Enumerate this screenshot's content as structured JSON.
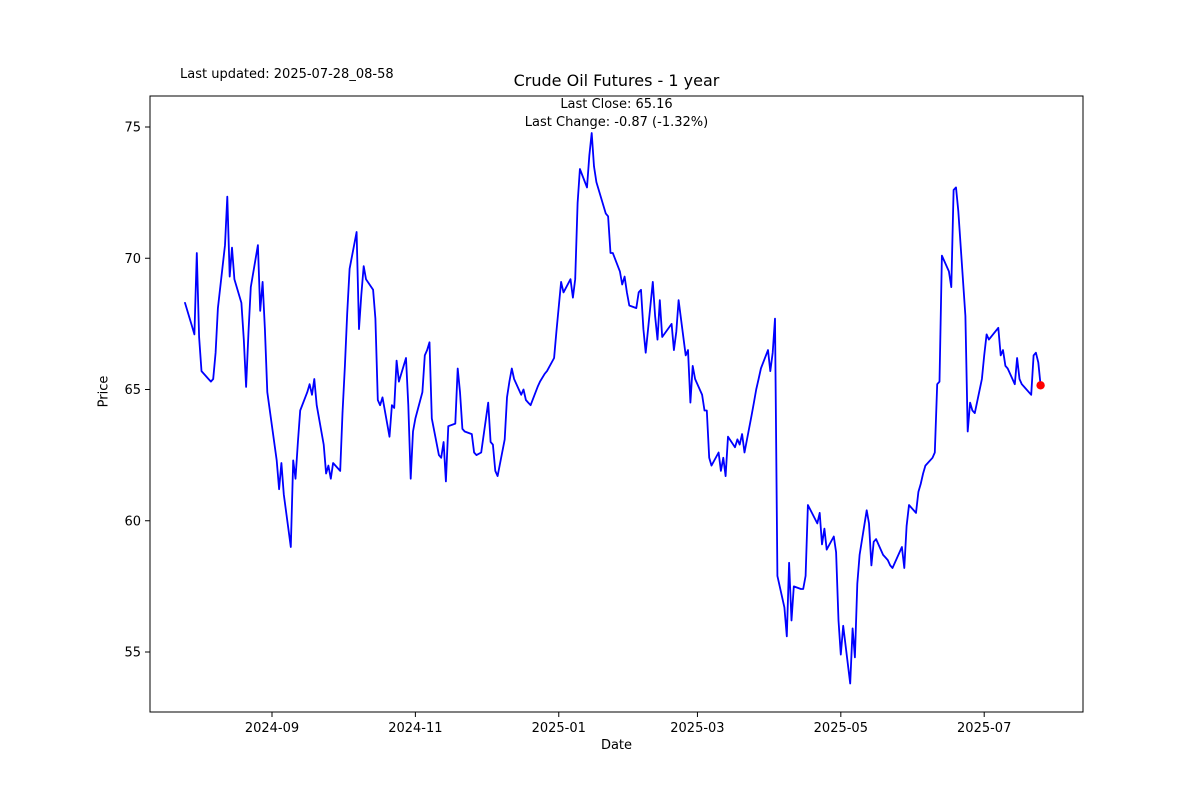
{
  "header": {
    "last_updated": "Last updated: 2025-07-28_08-58"
  },
  "chart_data": {
    "type": "line",
    "title": "Crude Oil Futures - 1 year",
    "annotations": {
      "last_close": "Last Close: 65.16",
      "last_change": "Last Change: -0.87 (-1.32%)"
    },
    "xlabel": "Date",
    "ylabel": "Price",
    "ylim": [
      52.7,
      76.2
    ],
    "y_ticks": [
      55,
      60,
      65,
      70,
      75
    ],
    "x_ticks": [
      {
        "label": "2024-09",
        "date": "2024-09-01"
      },
      {
        "label": "2024-11",
        "date": "2024-11-01"
      },
      {
        "label": "2025-01",
        "date": "2025-01-01"
      },
      {
        "label": "2025-03",
        "date": "2025-03-01"
      },
      {
        "label": "2025-05",
        "date": "2025-05-01"
      },
      {
        "label": "2025-07",
        "date": "2025-07-01"
      }
    ],
    "grid": false,
    "legend": "none",
    "line_color": "#0000ff",
    "marker_color": "#ff0000",
    "last_close": 65.16,
    "last_change": -0.87,
    "last_change_pct": -1.32,
    "series": [
      {
        "name": "Crude Oil Futures",
        "color": "#0000ff",
        "points": [
          [
            "2024-07-26",
            68.3
          ],
          [
            "2024-07-29",
            67.4
          ],
          [
            "2024-07-30",
            67.1
          ],
          [
            "2024-07-31",
            70.2
          ],
          [
            "2024-08-01",
            67.0
          ],
          [
            "2024-08-02",
            65.7
          ],
          [
            "2024-08-05",
            65.4
          ],
          [
            "2024-08-06",
            65.3
          ],
          [
            "2024-08-07",
            65.4
          ],
          [
            "2024-08-08",
            66.4
          ],
          [
            "2024-08-09",
            68.1
          ],
          [
            "2024-08-12",
            70.5
          ],
          [
            "2024-08-13",
            72.35
          ],
          [
            "2024-08-14",
            69.3
          ],
          [
            "2024-08-15",
            70.4
          ],
          [
            "2024-08-16",
            69.2
          ],
          [
            "2024-08-19",
            68.3
          ],
          [
            "2024-08-20",
            66.9
          ],
          [
            "2024-08-21",
            65.1
          ],
          [
            "2024-08-22",
            67.2
          ],
          [
            "2024-08-23",
            68.9
          ],
          [
            "2024-08-26",
            70.5
          ],
          [
            "2024-08-27",
            68.0
          ],
          [
            "2024-08-28",
            69.1
          ],
          [
            "2024-08-29",
            67.3
          ],
          [
            "2024-08-30",
            64.9
          ],
          [
            "2024-09-03",
            62.3
          ],
          [
            "2024-09-04",
            61.2
          ],
          [
            "2024-09-05",
            62.2
          ],
          [
            "2024-09-06",
            61.0
          ],
          [
            "2024-09-09",
            59.0
          ],
          [
            "2024-09-10",
            62.3
          ],
          [
            "2024-09-11",
            61.6
          ],
          [
            "2024-09-12",
            63.0
          ],
          [
            "2024-09-13",
            64.2
          ],
          [
            "2024-09-16",
            64.9
          ],
          [
            "2024-09-17",
            65.2
          ],
          [
            "2024-09-18",
            64.8
          ],
          [
            "2024-09-19",
            65.4
          ],
          [
            "2024-09-20",
            64.4
          ],
          [
            "2024-09-23",
            62.9
          ],
          [
            "2024-09-24",
            61.8
          ],
          [
            "2024-09-25",
            62.1
          ],
          [
            "2024-09-26",
            61.6
          ],
          [
            "2024-09-27",
            62.2
          ],
          [
            "2024-09-30",
            61.9
          ],
          [
            "2024-10-01",
            64.1
          ],
          [
            "2024-10-02",
            65.9
          ],
          [
            "2024-10-03",
            67.9
          ],
          [
            "2024-10-04",
            69.6
          ],
          [
            "2024-10-07",
            71.0
          ],
          [
            "2024-10-08",
            67.3
          ],
          [
            "2024-10-09",
            68.6
          ],
          [
            "2024-10-10",
            69.7
          ],
          [
            "2024-10-11",
            69.2
          ],
          [
            "2024-10-14",
            68.8
          ],
          [
            "2024-10-15",
            67.7
          ],
          [
            "2024-10-16",
            64.6
          ],
          [
            "2024-10-17",
            64.4
          ],
          [
            "2024-10-18",
            64.7
          ],
          [
            "2024-10-21",
            63.2
          ],
          [
            "2024-10-22",
            64.4
          ],
          [
            "2024-10-23",
            64.3
          ],
          [
            "2024-10-24",
            66.1
          ],
          [
            "2024-10-25",
            65.3
          ],
          [
            "2024-10-28",
            66.2
          ],
          [
            "2024-10-29",
            64.4
          ],
          [
            "2024-10-30",
            61.6
          ],
          [
            "2024-10-31",
            63.4
          ],
          [
            "2024-11-01",
            63.9
          ],
          [
            "2024-11-04",
            64.9
          ],
          [
            "2024-11-05",
            66.3
          ],
          [
            "2024-11-06",
            66.5
          ],
          [
            "2024-11-07",
            66.8
          ],
          [
            "2024-11-08",
            63.9
          ],
          [
            "2024-11-11",
            62.5
          ],
          [
            "2024-11-12",
            62.4
          ],
          [
            "2024-11-13",
            63.0
          ],
          [
            "2024-11-14",
            61.5
          ],
          [
            "2024-11-15",
            63.6
          ],
          [
            "2024-11-18",
            63.7
          ],
          [
            "2024-11-19",
            65.8
          ],
          [
            "2024-11-20",
            64.9
          ],
          [
            "2024-11-21",
            63.5
          ],
          [
            "2024-11-22",
            63.4
          ],
          [
            "2024-11-25",
            63.3
          ],
          [
            "2024-11-26",
            62.6
          ],
          [
            "2024-11-27",
            62.5
          ],
          [
            "2024-11-29",
            62.6
          ],
          [
            "2024-12-02",
            64.5
          ],
          [
            "2024-12-03",
            63.0
          ],
          [
            "2024-12-04",
            62.9
          ],
          [
            "2024-12-05",
            61.9
          ],
          [
            "2024-12-06",
            61.7
          ],
          [
            "2024-12-09",
            63.1
          ],
          [
            "2024-12-10",
            64.7
          ],
          [
            "2024-12-11",
            65.3
          ],
          [
            "2024-12-12",
            65.8
          ],
          [
            "2024-12-13",
            65.4
          ],
          [
            "2024-12-16",
            64.8
          ],
          [
            "2024-12-17",
            65.0
          ],
          [
            "2024-12-18",
            64.6
          ],
          [
            "2024-12-19",
            64.5
          ],
          [
            "2024-12-20",
            64.4
          ],
          [
            "2024-12-23",
            65.1
          ],
          [
            "2024-12-24",
            65.3
          ],
          [
            "2024-12-26",
            65.6
          ],
          [
            "2024-12-27",
            65.7
          ],
          [
            "2024-12-30",
            66.2
          ],
          [
            "2024-12-31",
            67.2
          ],
          [
            "2025-01-02",
            69.1
          ],
          [
            "2025-01-03",
            68.7
          ],
          [
            "2025-01-06",
            69.2
          ],
          [
            "2025-01-07",
            68.5
          ],
          [
            "2025-01-08",
            69.2
          ],
          [
            "2025-01-09",
            72.1
          ],
          [
            "2025-01-10",
            73.4
          ],
          [
            "2025-01-13",
            72.7
          ],
          [
            "2025-01-14",
            73.9
          ],
          [
            "2025-01-15",
            74.77
          ],
          [
            "2025-01-16",
            73.5
          ],
          [
            "2025-01-17",
            72.9
          ],
          [
            "2025-01-21",
            71.7
          ],
          [
            "2025-01-22",
            71.6
          ],
          [
            "2025-01-23",
            70.2
          ],
          [
            "2025-01-24",
            70.2
          ],
          [
            "2025-01-27",
            69.5
          ],
          [
            "2025-01-28",
            69.0
          ],
          [
            "2025-01-29",
            69.3
          ],
          [
            "2025-01-30",
            68.7
          ],
          [
            "2025-01-31",
            68.2
          ],
          [
            "2025-02-03",
            68.1
          ],
          [
            "2025-02-04",
            68.7
          ],
          [
            "2025-02-05",
            68.8
          ],
          [
            "2025-02-06",
            67.3
          ],
          [
            "2025-02-07",
            66.4
          ],
          [
            "2025-02-10",
            69.1
          ],
          [
            "2025-02-11",
            67.8
          ],
          [
            "2025-02-12",
            66.9
          ],
          [
            "2025-02-13",
            68.4
          ],
          [
            "2025-02-14",
            67.0
          ],
          [
            "2025-02-18",
            67.5
          ],
          [
            "2025-02-19",
            66.5
          ],
          [
            "2025-02-20",
            67.2
          ],
          [
            "2025-02-21",
            68.4
          ],
          [
            "2025-02-24",
            66.3
          ],
          [
            "2025-02-25",
            66.5
          ],
          [
            "2025-02-26",
            64.5
          ],
          [
            "2025-02-27",
            65.9
          ],
          [
            "2025-02-28",
            65.4
          ],
          [
            "2025-03-03",
            64.8
          ],
          [
            "2025-03-04",
            64.2
          ],
          [
            "2025-03-05",
            64.2
          ],
          [
            "2025-03-06",
            62.4
          ],
          [
            "2025-03-07",
            62.1
          ],
          [
            "2025-03-10",
            62.6
          ],
          [
            "2025-03-11",
            61.9
          ],
          [
            "2025-03-12",
            62.4
          ],
          [
            "2025-03-13",
            61.7
          ],
          [
            "2025-03-14",
            63.2
          ],
          [
            "2025-03-17",
            62.8
          ],
          [
            "2025-03-18",
            63.1
          ],
          [
            "2025-03-19",
            62.9
          ],
          [
            "2025-03-20",
            63.3
          ],
          [
            "2025-03-21",
            62.6
          ],
          [
            "2025-03-24",
            64.0
          ],
          [
            "2025-03-25",
            64.5
          ],
          [
            "2025-03-26",
            65.0
          ],
          [
            "2025-03-27",
            65.4
          ],
          [
            "2025-03-28",
            65.8
          ],
          [
            "2025-03-31",
            66.5
          ],
          [
            "2025-04-01",
            65.7
          ],
          [
            "2025-04-02",
            66.4
          ],
          [
            "2025-04-03",
            67.7
          ],
          [
            "2025-04-04",
            57.9
          ],
          [
            "2025-04-07",
            56.7
          ],
          [
            "2025-04-08",
            55.6
          ],
          [
            "2025-04-09",
            58.4
          ],
          [
            "2025-04-10",
            56.2
          ],
          [
            "2025-04-11",
            57.5
          ],
          [
            "2025-04-14",
            57.4
          ],
          [
            "2025-04-15",
            57.4
          ],
          [
            "2025-04-16",
            57.9
          ],
          [
            "2025-04-17",
            60.6
          ],
          [
            "2025-04-21",
            59.9
          ],
          [
            "2025-04-22",
            60.3
          ],
          [
            "2025-04-23",
            59.1
          ],
          [
            "2025-04-24",
            59.7
          ],
          [
            "2025-04-25",
            58.9
          ],
          [
            "2025-04-28",
            59.4
          ],
          [
            "2025-04-29",
            58.8
          ],
          [
            "2025-04-30",
            56.2
          ],
          [
            "2025-05-01",
            54.9
          ],
          [
            "2025-05-02",
            56.0
          ],
          [
            "2025-05-05",
            53.8
          ],
          [
            "2025-05-06",
            55.9
          ],
          [
            "2025-05-07",
            54.8
          ],
          [
            "2025-05-08",
            57.6
          ],
          [
            "2025-05-09",
            58.7
          ],
          [
            "2025-05-12",
            60.4
          ],
          [
            "2025-05-13",
            59.9
          ],
          [
            "2025-05-14",
            58.3
          ],
          [
            "2025-05-15",
            59.2
          ],
          [
            "2025-05-16",
            59.3
          ],
          [
            "2025-05-19",
            58.7
          ],
          [
            "2025-05-20",
            58.6
          ],
          [
            "2025-05-21",
            58.5
          ],
          [
            "2025-05-22",
            58.3
          ],
          [
            "2025-05-23",
            58.2
          ],
          [
            "2025-05-27",
            59.0
          ],
          [
            "2025-05-28",
            58.2
          ],
          [
            "2025-05-29",
            59.8
          ],
          [
            "2025-05-30",
            60.6
          ],
          [
            "2025-06-02",
            60.3
          ],
          [
            "2025-06-03",
            61.1
          ],
          [
            "2025-06-04",
            61.4
          ],
          [
            "2025-06-05",
            61.8
          ],
          [
            "2025-06-06",
            62.1
          ],
          [
            "2025-06-09",
            62.4
          ],
          [
            "2025-06-10",
            62.6
          ],
          [
            "2025-06-11",
            65.2
          ],
          [
            "2025-06-12",
            65.3
          ],
          [
            "2025-06-13",
            70.1
          ],
          [
            "2025-06-16",
            69.5
          ],
          [
            "2025-06-17",
            68.9
          ],
          [
            "2025-06-18",
            72.6
          ],
          [
            "2025-06-19",
            72.7
          ],
          [
            "2025-06-20",
            71.8
          ],
          [
            "2025-06-23",
            67.8
          ],
          [
            "2025-06-24",
            63.4
          ],
          [
            "2025-06-25",
            64.5
          ],
          [
            "2025-06-26",
            64.2
          ],
          [
            "2025-06-27",
            64.1
          ],
          [
            "2025-06-30",
            65.4
          ],
          [
            "2025-07-01",
            66.3
          ],
          [
            "2025-07-02",
            67.1
          ],
          [
            "2025-07-03",
            66.9
          ],
          [
            "2025-07-07",
            67.35
          ],
          [
            "2025-07-08",
            66.3
          ],
          [
            "2025-07-09",
            66.5
          ],
          [
            "2025-07-10",
            65.9
          ],
          [
            "2025-07-11",
            65.8
          ],
          [
            "2025-07-14",
            65.2
          ],
          [
            "2025-07-15",
            66.2
          ],
          [
            "2025-07-16",
            65.4
          ],
          [
            "2025-07-17",
            65.2
          ],
          [
            "2025-07-18",
            65.1
          ],
          [
            "2025-07-21",
            64.8
          ],
          [
            "2025-07-22",
            66.3
          ],
          [
            "2025-07-23",
            66.4
          ],
          [
            "2025-07-24",
            66.03
          ],
          [
            "2025-07-25",
            65.16
          ]
        ]
      }
    ]
  }
}
